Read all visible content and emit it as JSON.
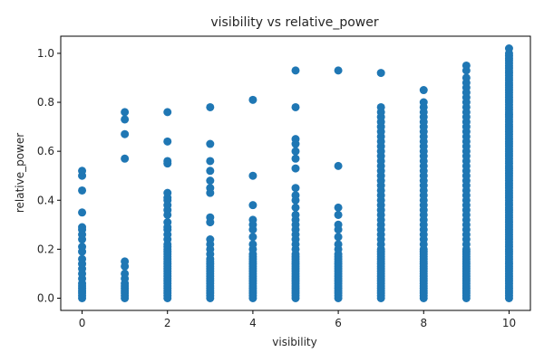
{
  "chart_data": {
    "type": "scatter",
    "title": "visibility vs relative_power",
    "xlabel": "visibility",
    "ylabel": "relative_power",
    "xlim": [
      -0.5,
      10.5
    ],
    "ylim": [
      -0.05,
      1.07
    ],
    "x_ticks": [
      0,
      2,
      4,
      6,
      8,
      10
    ],
    "x_tick_labels": [
      "0",
      "2",
      "4",
      "6",
      "8",
      "10"
    ],
    "y_ticks": [
      0.0,
      0.2,
      0.4,
      0.6,
      0.8,
      1.0
    ],
    "y_tick_labels": [
      "0.0",
      "0.2",
      "0.4",
      "0.6",
      "0.8",
      "1.0"
    ],
    "grid": false,
    "marker_color": "#1f77b4",
    "series": [
      {
        "x_groups": [
          {
            "x": 0,
            "y": [
              0.0,
              0.01,
              0.02,
              0.03,
              0.04,
              0.05,
              0.06,
              0.08,
              0.1,
              0.12,
              0.14,
              0.16,
              0.19,
              0.21,
              0.24,
              0.26,
              0.28,
              0.29,
              0.35,
              0.44,
              0.5,
              0.52
            ]
          },
          {
            "x": 1,
            "y": [
              0.0,
              0.01,
              0.02,
              0.03,
              0.04,
              0.05,
              0.06,
              0.08,
              0.1,
              0.13,
              0.15,
              0.57,
              0.67,
              0.73,
              0.76
            ]
          },
          {
            "x": 2,
            "y": [
              0.0,
              0.01,
              0.02,
              0.03,
              0.04,
              0.05,
              0.06,
              0.07,
              0.08,
              0.09,
              0.1,
              0.11,
              0.12,
              0.13,
              0.14,
              0.15,
              0.16,
              0.17,
              0.18,
              0.19,
              0.2,
              0.21,
              0.22,
              0.24,
              0.26,
              0.28,
              0.29,
              0.31,
              0.34,
              0.36,
              0.38,
              0.4,
              0.41,
              0.43,
              0.55,
              0.56,
              0.64,
              0.76
            ]
          },
          {
            "x": 3,
            "y": [
              0.0,
              0.01,
              0.02,
              0.03,
              0.04,
              0.05,
              0.06,
              0.07,
              0.08,
              0.09,
              0.1,
              0.11,
              0.12,
              0.13,
              0.14,
              0.15,
              0.16,
              0.18,
              0.2,
              0.22,
              0.24,
              0.31,
              0.33,
              0.43,
              0.45,
              0.48,
              0.52,
              0.56,
              0.63,
              0.78
            ]
          },
          {
            "x": 4,
            "y": [
              0.0,
              0.01,
              0.02,
              0.03,
              0.04,
              0.05,
              0.06,
              0.07,
              0.08,
              0.09,
              0.1,
              0.11,
              0.12,
              0.13,
              0.14,
              0.15,
              0.16,
              0.17,
              0.18,
              0.2,
              0.22,
              0.25,
              0.28,
              0.3,
              0.32,
              0.38,
              0.5,
              0.81
            ]
          },
          {
            "x": 5,
            "y": [
              0.0,
              0.01,
              0.02,
              0.03,
              0.04,
              0.05,
              0.06,
              0.07,
              0.08,
              0.09,
              0.1,
              0.11,
              0.12,
              0.13,
              0.14,
              0.15,
              0.16,
              0.17,
              0.18,
              0.2,
              0.22,
              0.24,
              0.26,
              0.28,
              0.3,
              0.32,
              0.34,
              0.37,
              0.4,
              0.42,
              0.45,
              0.53,
              0.57,
              0.6,
              0.63,
              0.65,
              0.78,
              0.93
            ]
          },
          {
            "x": 6,
            "y": [
              0.0,
              0.01,
              0.02,
              0.03,
              0.04,
              0.05,
              0.06,
              0.07,
              0.08,
              0.09,
              0.1,
              0.11,
              0.12,
              0.13,
              0.14,
              0.15,
              0.16,
              0.17,
              0.18,
              0.2,
              0.22,
              0.25,
              0.28,
              0.3,
              0.34,
              0.37,
              0.54,
              0.93
            ]
          },
          {
            "x": 7,
            "y": [
              0.0,
              0.01,
              0.02,
              0.03,
              0.04,
              0.05,
              0.06,
              0.07,
              0.08,
              0.09,
              0.1,
              0.11,
              0.12,
              0.13,
              0.14,
              0.15,
              0.16,
              0.17,
              0.18,
              0.19,
              0.2,
              0.22,
              0.24,
              0.26,
              0.28,
              0.3,
              0.32,
              0.34,
              0.36,
              0.38,
              0.4,
              0.42,
              0.44,
              0.46,
              0.48,
              0.5,
              0.52,
              0.54,
              0.56,
              0.58,
              0.6,
              0.62,
              0.64,
              0.66,
              0.68,
              0.7,
              0.72,
              0.74,
              0.76,
              0.78,
              0.92
            ]
          },
          {
            "x": 8,
            "y": [
              0.0,
              0.01,
              0.02,
              0.03,
              0.04,
              0.05,
              0.06,
              0.07,
              0.08,
              0.09,
              0.1,
              0.11,
              0.12,
              0.13,
              0.14,
              0.15,
              0.16,
              0.17,
              0.18,
              0.19,
              0.2,
              0.22,
              0.24,
              0.26,
              0.28,
              0.3,
              0.32,
              0.34,
              0.36,
              0.38,
              0.4,
              0.42,
              0.44,
              0.46,
              0.48,
              0.5,
              0.52,
              0.54,
              0.56,
              0.58,
              0.6,
              0.62,
              0.64,
              0.66,
              0.68,
              0.7,
              0.72,
              0.74,
              0.76,
              0.78,
              0.8,
              0.85
            ]
          },
          {
            "x": 9,
            "y": [
              0.0,
              0.01,
              0.02,
              0.03,
              0.04,
              0.05,
              0.06,
              0.07,
              0.08,
              0.09,
              0.1,
              0.11,
              0.12,
              0.13,
              0.14,
              0.15,
              0.16,
              0.17,
              0.18,
              0.19,
              0.2,
              0.22,
              0.24,
              0.26,
              0.28,
              0.3,
              0.32,
              0.34,
              0.36,
              0.38,
              0.4,
              0.42,
              0.44,
              0.46,
              0.48,
              0.5,
              0.52,
              0.54,
              0.56,
              0.58,
              0.6,
              0.62,
              0.64,
              0.66,
              0.68,
              0.7,
              0.72,
              0.74,
              0.76,
              0.78,
              0.8,
              0.82,
              0.84,
              0.86,
              0.88,
              0.9,
              0.93,
              0.95
            ]
          },
          {
            "x": 10,
            "y": [
              0.0,
              0.01,
              0.02,
              0.03,
              0.04,
              0.05,
              0.06,
              0.07,
              0.08,
              0.09,
              0.1,
              0.11,
              0.12,
              0.13,
              0.14,
              0.15,
              0.16,
              0.17,
              0.18,
              0.19,
              0.2,
              0.21,
              0.22,
              0.23,
              0.24,
              0.25,
              0.26,
              0.27,
              0.28,
              0.29,
              0.3,
              0.31,
              0.32,
              0.33,
              0.34,
              0.35,
              0.36,
              0.37,
              0.38,
              0.39,
              0.4,
              0.41,
              0.42,
              0.43,
              0.44,
              0.45,
              0.46,
              0.47,
              0.48,
              0.49,
              0.5,
              0.51,
              0.52,
              0.53,
              0.54,
              0.55,
              0.56,
              0.57,
              0.58,
              0.59,
              0.6,
              0.61,
              0.62,
              0.63,
              0.64,
              0.65,
              0.66,
              0.67,
              0.68,
              0.69,
              0.7,
              0.71,
              0.72,
              0.73,
              0.74,
              0.75,
              0.76,
              0.77,
              0.78,
              0.79,
              0.8,
              0.81,
              0.82,
              0.83,
              0.84,
              0.85,
              0.86,
              0.87,
              0.88,
              0.89,
              0.9,
              0.91,
              0.92,
              0.93,
              0.94,
              0.95,
              0.96,
              0.97,
              0.98,
              0.99,
              1.0,
              1.02
            ]
          }
        ]
      }
    ]
  }
}
